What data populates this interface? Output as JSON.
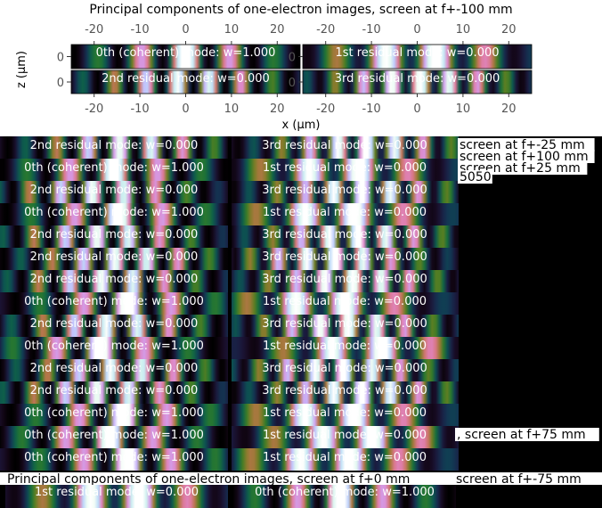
{
  "chart_data": {
    "type": "heatmap",
    "title": "Principal components of one-electron images, screen at f+-100 mm",
    "xlabel": "x (µm)",
    "ylabel": "z (µm)",
    "x_ticks": [
      -20,
      -10,
      0,
      10,
      20
    ],
    "y_ticks": [
      0
    ],
    "xlim": [
      -25,
      25
    ],
    "colormap": "cubehelix",
    "panels": [
      {
        "label": "0th (coherent) mode: w=1.000",
        "row": 0,
        "col": 0,
        "mode": 0
      },
      {
        "label": "1st residual mode: w=0.000",
        "row": 0,
        "col": 1,
        "mode": 1
      },
      {
        "label": "2nd residual mode: w=0.000",
        "row": 1,
        "col": 0,
        "mode": 2
      },
      {
        "label": "3rd residual mode: w=0.000",
        "row": 1,
        "col": 1,
        "mode": 3
      }
    ],
    "overlay_strips": {
      "left": [
        "2nd residual mode: w=0.000",
        "0th (coherent) mode: w=1.000",
        "2nd residual mode: w=0.000",
        "0th (coherent) mode: w=1.000",
        "2nd residual mode: w=0.000",
        "2nd residual mode: w=0.000",
        "2nd residual mode: w=0.000",
        "0th (coherent) mode: w=1.000",
        "2nd residual mode: w=0.000",
        "0th (coherent) mode: w=1.000",
        "2nd residual mode: w=0.000",
        "2nd residual mode: w=0.000",
        "0th (coherent) mode: w=1.000",
        "0th (coherent) mode: w=1.000",
        "0th (coherent) mode: w=1.000"
      ],
      "right": [
        "3rd residual mode: w=0.000",
        "1st residual mode: w=0.000",
        "3rd residual mode: w=0.000",
        "1st residual mode: w=0.000",
        "3rd residual mode: w=0.000",
        "3rd residual mode: w=0.000",
        "3rd residual mode: w=0.000",
        "1st residual mode: w=0.000",
        "3rd residual mode: w=0.000",
        "1st residual mode: w=0.000",
        "3rd residual mode: w=0.000",
        "3rd residual mode: w=0.000",
        "1st residual mode: w=0.000",
        "1st residual mode: w=0.000",
        "1st residual mode: w=0.000"
      ]
    },
    "side_texts": [
      "screen at f+-25 mm",
      "screen at f+100 mm",
      "screen at f+25 mm",
      "5050",
      ", screen at f+75 mm",
      "screen at f+-75 mm"
    ],
    "bottom_title": "Principal components of one-electron images, screen at f+0 mm",
    "bottom_strips": [
      "1st residual mode: w=0.000",
      "0th (coherent) mode: w=1.000"
    ]
  }
}
